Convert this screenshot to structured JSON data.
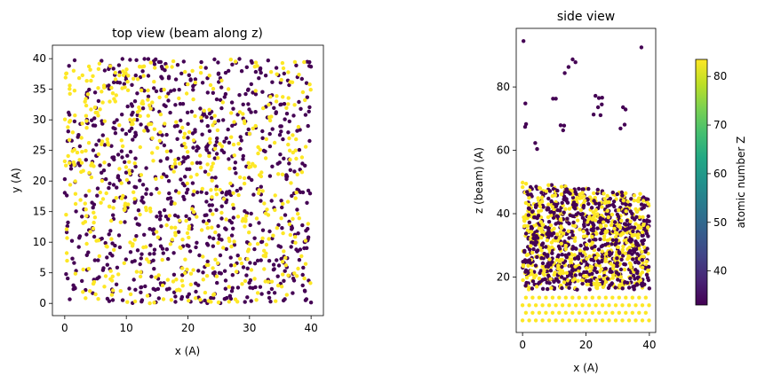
{
  "chart_data": [
    {
      "type": "scatter",
      "title": "top view (beam along z)",
      "xlabel": "x (A)",
      "ylabel": "y (A)",
      "xlim": [
        -2,
        42
      ],
      "ylim": [
        -2,
        42.2
      ],
      "xticks": [
        0,
        10,
        20,
        30,
        40
      ],
      "yticks": [
        0,
        5,
        10,
        15,
        20,
        25,
        30,
        35,
        40
      ],
      "grid": false,
      "series": [
        {
          "z": 33,
          "count": 820,
          "x_range": [
            0,
            40
          ],
          "y_range": [
            0,
            40
          ]
        },
        {
          "z": 83,
          "count": 560,
          "x_range": [
            0,
            40
          ],
          "y_range": [
            0,
            40
          ]
        }
      ]
    },
    {
      "type": "scatter",
      "title": "side view",
      "xlabel": "x (A)",
      "ylabel": "z (beam) (A)",
      "xlim": [
        -2,
        42
      ],
      "ylim": [
        2.5,
        98.5
      ],
      "xticks": [
        0,
        20,
        40
      ],
      "yticks": [
        20,
        40,
        60,
        80
      ],
      "grid": false,
      "substrate": {
        "z": 83,
        "x_step": 2.1,
        "z_levels": [
          6.3,
          8.7,
          11.1,
          13.5
        ]
      },
      "film": {
        "z_values": [
          33,
          83
        ],
        "x_range": [
          0,
          40
        ],
        "z_range": [
          16,
          50
        ],
        "count": 1300
      },
      "sputtered": [
        {
          "x": 0.3,
          "z": 94.5
        },
        {
          "x": 37.5,
          "z": 92.5
        },
        {
          "x": 15.8,
          "z": 88.7
        },
        {
          "x": 16.7,
          "z": 87.8
        },
        {
          "x": 14.5,
          "z": 86.3
        },
        {
          "x": 13.3,
          "z": 84.4
        },
        {
          "x": 23.0,
          "z": 77.2
        },
        {
          "x": 24.1,
          "z": 76.5
        },
        {
          "x": 25.1,
          "z": 76.6
        },
        {
          "x": 9.6,
          "z": 76.3
        },
        {
          "x": 10.5,
          "z": 76.3
        },
        {
          "x": 0.9,
          "z": 74.8
        },
        {
          "x": 23.8,
          "z": 73.6
        },
        {
          "x": 25.0,
          "z": 74.5
        },
        {
          "x": 31.7,
          "z": 73.6
        },
        {
          "x": 32.5,
          "z": 72.9
        },
        {
          "x": 22.4,
          "z": 71.3
        },
        {
          "x": 24.6,
          "z": 71.1
        },
        {
          "x": 1.1,
          "z": 68.3
        },
        {
          "x": 0.8,
          "z": 67.4
        },
        {
          "x": 12.0,
          "z": 67.9
        },
        {
          "x": 13.1,
          "z": 67.8
        },
        {
          "x": 12.8,
          "z": 66.3
        },
        {
          "x": 30.9,
          "z": 66.9
        },
        {
          "x": 32.2,
          "z": 68.1
        },
        {
          "x": 4.0,
          "z": 62.3
        },
        {
          "x": 4.6,
          "z": 60.4
        }
      ]
    }
  ],
  "colorbar": {
    "label": "atomic number Z",
    "vmin": 33,
    "vmax": 83.5,
    "ticks": [
      40,
      50,
      60,
      70,
      80
    ],
    "colormap": "viridis",
    "low_color": "#440154",
    "high_color": "#fde725"
  }
}
